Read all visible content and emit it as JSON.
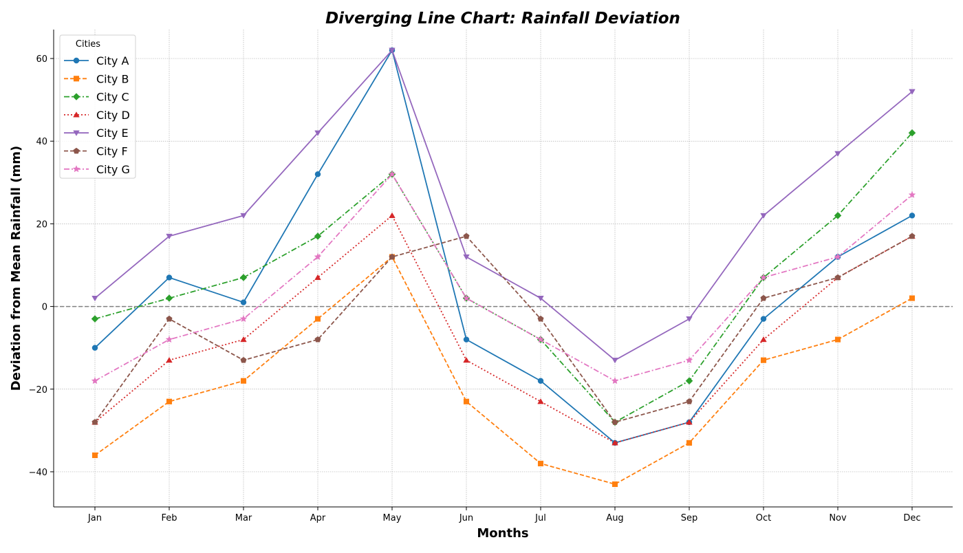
{
  "chart_data": {
    "type": "line",
    "title": "Diverging Line Chart: Rainfall Deviation",
    "xlabel": "Months",
    "ylabel": "Deviation from Mean Rainfall (mm)",
    "categories": [
      "Jan",
      "Feb",
      "Mar",
      "Apr",
      "May",
      "Jun",
      "Jul",
      "Aug",
      "Sep",
      "Oct",
      "Nov",
      "Dec"
    ],
    "ylim": [
      -48.5,
      67
    ],
    "yticks": [
      -40,
      -20,
      0,
      20,
      40,
      60
    ],
    "grid": true,
    "zero_line": 0,
    "legend": {
      "title": "Cities",
      "placement": "top-left"
    },
    "series": [
      {
        "name": "City A",
        "color": "#1f77b4",
        "dash": "solid",
        "marker": "circle",
        "values": [
          -10,
          7,
          1,
          32,
          62,
          -8,
          -18,
          -33,
          -28,
          -3,
          12,
          22
        ]
      },
      {
        "name": "City B",
        "color": "#ff7f0e",
        "dash": "dashed",
        "marker": "square",
        "values": [
          -36,
          -23,
          -18,
          -3,
          12,
          -23,
          -38,
          -43,
          -33,
          -13,
          -8,
          2
        ]
      },
      {
        "name": "City C",
        "color": "#2ca02c",
        "dash": "dashdot",
        "marker": "diamond",
        "values": [
          -3,
          2,
          7,
          17,
          32,
          2,
          -8,
          -28,
          -18,
          7,
          22,
          42
        ]
      },
      {
        "name": "City D",
        "color": "#d62728",
        "dash": "dotted",
        "marker": "triangle-up",
        "values": [
          -28,
          -13,
          -8,
          7,
          22,
          -13,
          -23,
          -33,
          -28,
          -8,
          7,
          17
        ]
      },
      {
        "name": "City E",
        "color": "#9467bd",
        "dash": "solid",
        "marker": "triangle-down",
        "values": [
          2,
          17,
          22,
          42,
          62,
          12,
          2,
          -13,
          -3,
          22,
          37,
          52
        ]
      },
      {
        "name": "City F",
        "color": "#8c564b",
        "dash": "dashed",
        "marker": "pentagon",
        "values": [
          -28,
          -3,
          -13,
          -8,
          12,
          17,
          -3,
          -28,
          -23,
          2,
          7,
          17
        ]
      },
      {
        "name": "City G",
        "color": "#e377c2",
        "dash": "dashdot",
        "marker": "star",
        "values": [
          -18,
          -8,
          -3,
          12,
          32,
          2,
          -8,
          -18,
          -13,
          7,
          12,
          27
        ]
      }
    ]
  }
}
